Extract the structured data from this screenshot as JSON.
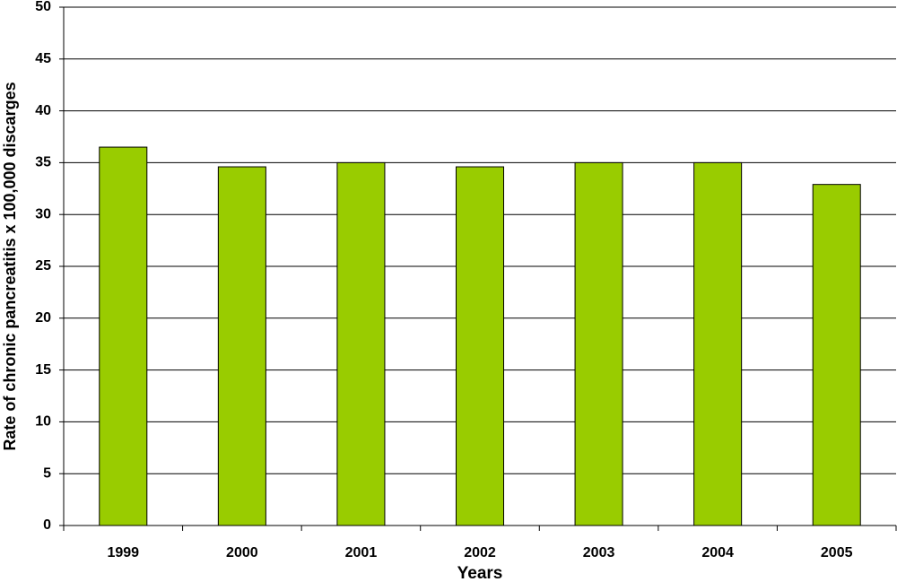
{
  "chart_data": {
    "type": "bar",
    "x_label": "Years",
    "y_label": "Rate of chronic pancreatitis x 100,000 discarges",
    "categories": [
      "1999",
      "2000",
      "2001",
      "2002",
      "2003",
      "2004",
      "2005"
    ],
    "values": [
      36.5,
      34.6,
      35,
      34.6,
      35,
      35,
      32.9
    ],
    "color": "#99cc00",
    "ylim": [
      0,
      50
    ],
    "yticks": [
      0,
      5,
      10,
      15,
      20,
      25,
      30,
      35,
      40,
      45,
      50
    ],
    "grid": true
  }
}
